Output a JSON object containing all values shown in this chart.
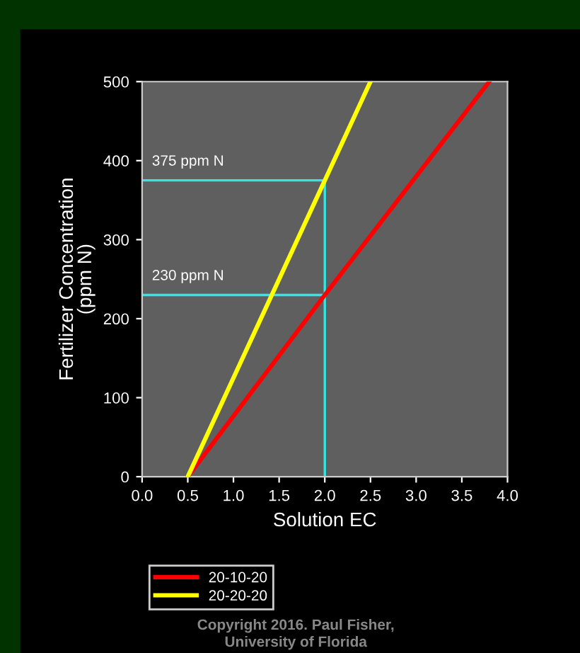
{
  "chart_data": {
    "type": "line",
    "xlabel": "Solution EC",
    "ylabel": "Fertilizer Concentration\n(ppm N)",
    "xlim": [
      0,
      4
    ],
    "xticks": [
      {
        "value": 0,
        "label": "0.0"
      },
      {
        "value": 0.5,
        "label": "0.5"
      },
      {
        "value": 1,
        "label": "1.0"
      },
      {
        "value": 1.5,
        "label": "1.5"
      },
      {
        "value": 2,
        "label": "2.0"
      },
      {
        "value": 2.5,
        "label": "2.5"
      },
      {
        "value": 3,
        "label": "3.0"
      },
      {
        "value": 3.5,
        "label": "3.5"
      },
      {
        "value": 4,
        "label": "4.0"
      }
    ],
    "ylim": [
      0,
      500
    ],
    "yticks": [
      0,
      100,
      200,
      300,
      400,
      500
    ],
    "series": [
      {
        "name": "20-10-20",
        "color": "#ff0000",
        "x": [
          0.5,
          2.0,
          3.8
        ],
        "values": [
          0,
          230,
          500
        ]
      },
      {
        "name": "20-20-20",
        "color": "#ffff00",
        "x": [
          0.5,
          2.0,
          2.5
        ],
        "values": [
          0,
          375,
          500
        ]
      },
      {
        "color": "#33e6e6",
        "x": [
          0,
          2.0,
          2.0
        ],
        "values": [
          375,
          375,
          0
        ]
      },
      {
        "color": "#33e6e6",
        "x": [
          0,
          2.0
        ],
        "values": [
          230,
          230
        ]
      }
    ],
    "annotations": [
      {
        "text": "375 ppm N",
        "x": 0,
        "y": 375
      },
      {
        "text": "230 ppm N",
        "x": 0,
        "y": 230
      },
      "Copyright 2016. Paul Fisher,\nUniversity of Florida"
    ],
    "legend": "bottom left",
    "grid": false,
    "marker": "none",
    "line_style": "solid"
  }
}
